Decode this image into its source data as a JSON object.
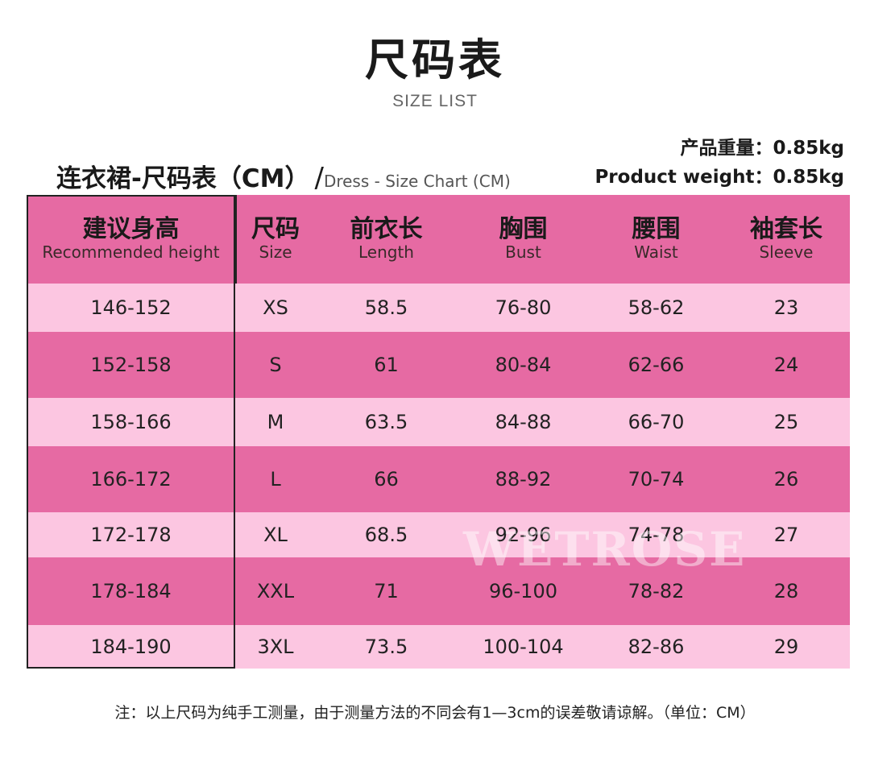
{
  "title": "尺码表",
  "subtitle": "SIZE LIST",
  "weight_zh": "产品重量：0.85kg",
  "weight_en": "Product weight：0.85kg",
  "chart_title_main": "连衣裙-尺码表（CM）",
  "chart_title_slash": "/",
  "chart_title_en": "Dress - Size Chart (CM)",
  "headers": [
    {
      "zh": "建议身高",
      "en": "Recommended height"
    },
    {
      "zh": "尺码",
      "en": "Size"
    },
    {
      "zh": "前衣长",
      "en": "Length"
    },
    {
      "zh": "胸围",
      "en": "Bust"
    },
    {
      "zh": "腰围",
      "en": "Waist"
    },
    {
      "zh": "袖套长",
      "en": "Sleeve"
    }
  ],
  "rows": [
    [
      "146-152",
      "XS",
      "58.5",
      "76-80",
      "58-62",
      "23"
    ],
    [
      "152-158",
      "S",
      "61",
      "80-84",
      "62-66",
      "24"
    ],
    [
      "158-166",
      "M",
      "63.5",
      "84-88",
      "66-70",
      "25"
    ],
    [
      "166-172",
      "L",
      "66",
      "88-92",
      "70-74",
      "26"
    ],
    [
      "172-178",
      "XL",
      "68.5",
      "92-96",
      "74-78",
      "27"
    ],
    [
      "178-184",
      "XXL",
      "71",
      "96-100",
      "78-82",
      "28"
    ],
    [
      "184-190",
      "3XL",
      "73.5",
      "100-104",
      "82-86",
      "29"
    ]
  ],
  "watermark": "WETROSE",
  "note": "注：以上尺码为纯手工测量，由于测量方法的不同会有1—3cm的误差敬请谅解。（单位：CM）",
  "colors": {
    "header": "#e66aa3",
    "row_light": "#fcc6e1",
    "row_dark": "#e66aa3"
  }
}
